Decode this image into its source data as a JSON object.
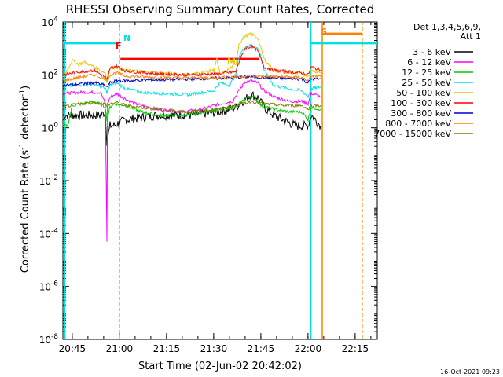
{
  "chart_data": {
    "type": "line",
    "title": "RHESSI Observing Summary Count Rates, Corrected",
    "xlabel": "Start Time (02-Jun-02 20:42:02)",
    "ylabel_base": "Corrected Count Rate (s",
    "ylabel_sup": "-1",
    "ylabel_tail": " detector",
    "ylabel_end": ")",
    "x_start_minutes": 0,
    "x_end_minutes": 100,
    "xlim_minutes_after_2042": [
      0,
      100
    ],
    "x_ticks": [
      {
        "label": "20:45",
        "minutes": 2.97
      },
      {
        "label": "21:00",
        "minutes": 17.97
      },
      {
        "label": "21:15",
        "minutes": 32.97
      },
      {
        "label": "21:30",
        "minutes": 47.97
      },
      {
        "label": "21:45",
        "minutes": 62.97
      },
      {
        "label": "22:00",
        "minutes": 77.97
      },
      {
        "label": "22:15",
        "minutes": 92.97
      }
    ],
    "yscale": "log",
    "ylim_exp": [
      -8,
      4
    ],
    "y_tick_exps": [
      4,
      2,
      0,
      -2,
      -4,
      -6,
      -8
    ],
    "y_tick_base": "10",
    "legend_header": [
      "Det 1,3,4,5,6,9,",
      "Att 1"
    ],
    "legend_position": "right",
    "series": [
      {
        "name": "3 - 6 keV",
        "color": "#000000",
        "points": [
          [
            0,
            3
          ],
          [
            5,
            3
          ],
          [
            12,
            3
          ],
          [
            13.5,
            4
          ],
          [
            14,
            0.3
          ],
          [
            15,
            1.2
          ],
          [
            16,
            1.2
          ],
          [
            20,
            2
          ],
          [
            30,
            3
          ],
          [
            40,
            3
          ],
          [
            50,
            4
          ],
          [
            55,
            6
          ],
          [
            58,
            12
          ],
          [
            60,
            18
          ],
          [
            62,
            14
          ],
          [
            64,
            6
          ],
          [
            67,
            3
          ],
          [
            70,
            2
          ],
          [
            74,
            1.2
          ],
          [
            78,
            1.2
          ],
          [
            79,
            3
          ],
          [
            82,
            1.2
          ]
        ]
      },
      {
        "name": "6 - 12 keV",
        "color": "#ff00ff",
        "points": [
          [
            0,
            20
          ],
          [
            6,
            22
          ],
          [
            12,
            22
          ],
          [
            13.5,
            8
          ],
          [
            14,
            5e-05
          ],
          [
            14.2,
            8
          ],
          [
            15,
            14
          ],
          [
            17,
            20
          ],
          [
            19,
            14
          ],
          [
            23,
            8
          ],
          [
            30,
            5
          ],
          [
            38,
            4
          ],
          [
            44,
            5
          ],
          [
            50,
            8
          ],
          [
            54,
            10
          ],
          [
            56,
            25
          ],
          [
            58,
            55
          ],
          [
            60,
            60
          ],
          [
            62,
            50
          ],
          [
            64,
            25
          ],
          [
            67,
            15
          ],
          [
            72,
            10
          ],
          [
            76,
            10
          ],
          [
            78,
            8
          ],
          [
            79,
            20
          ],
          [
            82,
            15
          ]
        ]
      },
      {
        "name": "12 - 25 keV",
        "color": "#00cc00",
        "points": [
          [
            0,
            1.2
          ],
          [
            1.5,
            1.2
          ],
          [
            3,
            7
          ],
          [
            6,
            8
          ],
          [
            10,
            10
          ],
          [
            13.5,
            6
          ],
          [
            14,
            2
          ],
          [
            15,
            6
          ],
          [
            16,
            8
          ],
          [
            20,
            7
          ],
          [
            25,
            4
          ],
          [
            30,
            3
          ],
          [
            40,
            3
          ],
          [
            45,
            4
          ],
          [
            50,
            5
          ],
          [
            55,
            6
          ],
          [
            57,
            10
          ],
          [
            59,
            16
          ],
          [
            61,
            14
          ],
          [
            63,
            7
          ],
          [
            67,
            5
          ],
          [
            72,
            4
          ],
          [
            76,
            4
          ],
          [
            78,
            2
          ],
          [
            79,
            6
          ],
          [
            82,
            5
          ]
        ]
      },
      {
        "name": "25 - 50 keV",
        "color": "#00e0e0",
        "points": [
          [
            0,
            35
          ],
          [
            4,
            40
          ],
          [
            10,
            45
          ],
          [
            13.5,
            30
          ],
          [
            14,
            22
          ],
          [
            15,
            40
          ],
          [
            17,
            50
          ],
          [
            20,
            30
          ],
          [
            25,
            22
          ],
          [
            30,
            20
          ],
          [
            40,
            18
          ],
          [
            48,
            25
          ],
          [
            50,
            50
          ],
          [
            53,
            40
          ],
          [
            55,
            100
          ],
          [
            56,
            500
          ],
          [
            58,
            1200
          ],
          [
            60,
            1300
          ],
          [
            62,
            1000
          ],
          [
            63,
            500
          ],
          [
            64,
            150
          ],
          [
            67,
            40
          ],
          [
            72,
            30
          ],
          [
            76,
            25
          ],
          [
            78,
            15
          ],
          [
            79,
            30
          ],
          [
            82,
            35
          ]
        ]
      },
      {
        "name": "50 - 100 keV",
        "color": "#e6c800",
        "points": [
          [
            0,
            80
          ],
          [
            3,
            350
          ],
          [
            5,
            250
          ],
          [
            7,
            300
          ],
          [
            10,
            200
          ],
          [
            13.5,
            120
          ],
          [
            14,
            50
          ],
          [
            15,
            180
          ],
          [
            17,
            200
          ],
          [
            20,
            150
          ],
          [
            30,
            120
          ],
          [
            40,
            100
          ],
          [
            48,
            150
          ],
          [
            49,
            400
          ],
          [
            50,
            100
          ],
          [
            55,
            250
          ],
          [
            56,
            1500
          ],
          [
            58,
            3000
          ],
          [
            60,
            3500
          ],
          [
            62,
            2500
          ],
          [
            63,
            1000
          ],
          [
            64,
            400
          ],
          [
            67,
            150
          ],
          [
            72,
            120
          ],
          [
            76,
            110
          ],
          [
            78,
            90
          ],
          [
            79,
            150
          ],
          [
            82,
            120
          ]
        ]
      },
      {
        "name": "100 - 300 keV",
        "color": "#ff0000",
        "points": [
          [
            0,
            100
          ],
          [
            5,
            130
          ],
          [
            10,
            150
          ],
          [
            13.5,
            80
          ],
          [
            14,
            60
          ],
          [
            15,
            180
          ],
          [
            17,
            220
          ],
          [
            20,
            140
          ],
          [
            30,
            110
          ],
          [
            40,
            100
          ],
          [
            50,
            110
          ],
          [
            55,
            130
          ],
          [
            56,
            300
          ],
          [
            58,
            1000
          ],
          [
            60,
            1200
          ],
          [
            62,
            800
          ],
          [
            63,
            400
          ],
          [
            64,
            200
          ],
          [
            67,
            150
          ],
          [
            72,
            130
          ],
          [
            76,
            120
          ],
          [
            78,
            100
          ],
          [
            79,
            200
          ],
          [
            82,
            150
          ]
        ]
      },
      {
        "name": "300 - 800 keV",
        "color": "#0000cc",
        "points": [
          [
            0,
            40
          ],
          [
            5,
            45
          ],
          [
            10,
            50
          ],
          [
            13.5,
            40
          ],
          [
            14,
            35
          ],
          [
            15,
            50
          ],
          [
            17,
            60
          ],
          [
            20,
            60
          ],
          [
            30,
            65
          ],
          [
            40,
            70
          ],
          [
            50,
            75
          ],
          [
            55,
            80
          ],
          [
            60,
            85
          ],
          [
            64,
            80
          ],
          [
            70,
            75
          ],
          [
            76,
            70
          ],
          [
            78,
            50
          ],
          [
            79,
            70
          ],
          [
            82,
            70
          ]
        ]
      },
      {
        "name": "800 - 7000 keV",
        "color": "#ff8000",
        "points": [
          [
            0,
            60
          ],
          [
            5,
            80
          ],
          [
            10,
            100
          ],
          [
            13.5,
            70
          ],
          [
            14,
            60
          ],
          [
            15,
            100
          ],
          [
            17,
            120
          ],
          [
            20,
            90
          ],
          [
            30,
            80
          ],
          [
            40,
            75
          ],
          [
            50,
            80
          ],
          [
            60,
            90
          ],
          [
            70,
            85
          ],
          [
            76,
            80
          ],
          [
            78,
            60
          ],
          [
            79,
            90
          ],
          [
            82,
            85
          ]
        ]
      },
      {
        "name": "7000 - 15000 keV",
        "color": "#808000",
        "points": [
          [
            0,
            6
          ],
          [
            5,
            8
          ],
          [
            10,
            9
          ],
          [
            13.5,
            8
          ],
          [
            14,
            6
          ],
          [
            15,
            8
          ],
          [
            17,
            9
          ],
          [
            20,
            7
          ],
          [
            30,
            5
          ],
          [
            40,
            4
          ],
          [
            50,
            5
          ],
          [
            55,
            7
          ],
          [
            60,
            10
          ],
          [
            64,
            8
          ],
          [
            70,
            7
          ],
          [
            76,
            7
          ],
          [
            78,
            5
          ],
          [
            79,
            7
          ],
          [
            82,
            7
          ]
        ]
      }
    ],
    "annotations": [
      {
        "label": "N",
        "color": "#00e0e0",
        "x_minutes": 17.97
      },
      {
        "label": "F",
        "color": "#ff0000",
        "x_minutes": 15.5
      },
      {
        "label": "M",
        "color": "#e6c800",
        "x_minutes": 51
      },
      {
        "label": "S",
        "color": "#ff8000",
        "x_minutes": 80.8
      }
    ],
    "state_bars": [
      {
        "name": "night",
        "color": "#00e0e0",
        "x0": 0,
        "x1": 17.97,
        "y_exp": 3.2
      },
      {
        "name": "night",
        "color": "#00e0e0",
        "x0": 78.9,
        "x1": 100,
        "y_exp": 3.2
      },
      {
        "name": "flare",
        "color": "#ff0000",
        "x0": 18.3,
        "x1": 62.5,
        "y_exp": 2.6
      },
      {
        "name": "saa",
        "color": "#ff8000",
        "x0": 82.5,
        "x1": 95.2,
        "y_exp": 3.55
      }
    ],
    "vertical_lines": [
      {
        "color": "#00e0e0",
        "x_minutes": 0.6,
        "style": "solid"
      },
      {
        "color": "#00e0e0",
        "x_minutes": 17.97,
        "style": "dashed"
      },
      {
        "color": "#00e0e0",
        "x_minutes": 78.9,
        "style": "solid"
      },
      {
        "color": "#ff8000",
        "x_minutes": 82.5,
        "style": "solid"
      },
      {
        "color": "#ff8000",
        "x_minutes": 95.2,
        "style": "dashed"
      }
    ]
  },
  "footer_timestamp": "16-Oct-2021 09:23"
}
